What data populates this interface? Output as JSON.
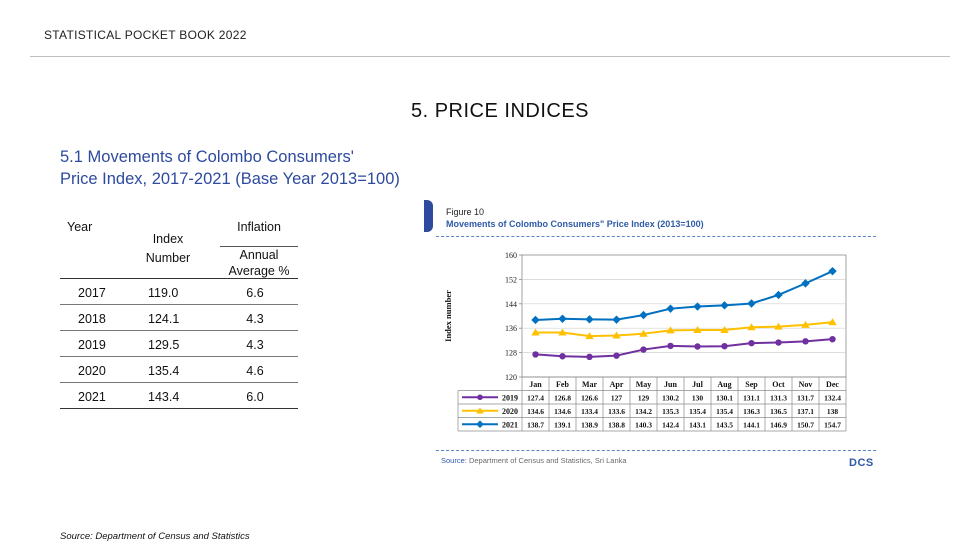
{
  "header": {
    "title": "STATISTICAL POCKET BOOK 2022"
  },
  "chapter": {
    "title": "5.  PRICE INDICES"
  },
  "section": {
    "line1": "5.1  Movements of Colombo Consumers'",
    "line2": "Price Index, 2017-2021 (Base Year 2013=100)"
  },
  "table": {
    "col_year": "Year",
    "col_index": "Index Number",
    "col_inflation": "Inflation",
    "col_inflation_sub": "Annual Average %",
    "rows": [
      {
        "year": "2017",
        "index": "119.0",
        "inflation": "6.6"
      },
      {
        "year": "2018",
        "index": "124.1",
        "inflation": "4.3"
      },
      {
        "year": "2019",
        "index": "129.5",
        "inflation": "4.3"
      },
      {
        "year": "2020",
        "index": "135.4",
        "inflation": "4.6"
      },
      {
        "year": "2021",
        "index": "143.4",
        "inflation": "6.0"
      }
    ]
  },
  "source": "Source: Department of Census and Statistics",
  "figure": {
    "label": "Figure 10",
    "title": "Movements of Colombo Consumers\" Price Index (2013=100)",
    "source_key": "Source:",
    "source_text": "Department of Census and Statistics, Sri Lanka",
    "logo": "DCS",
    "colors": {
      "2019": "#7030a0",
      "2020": "#ffc000",
      "2021": "#0070c0",
      "title": "#2e5aa8",
      "tab": "#2e4a9e"
    }
  },
  "chart_data": {
    "type": "line",
    "ylabel": "Index number",
    "ylim": [
      120,
      160
    ],
    "yticks": [
      120,
      128,
      136,
      144,
      152,
      160
    ],
    "categories": [
      "Jan",
      "Feb",
      "Mar",
      "Apr",
      "May",
      "Jun",
      "Jul",
      "Aug",
      "Sep",
      "Oct",
      "Nov",
      "Dec"
    ],
    "grid": true,
    "legend": "data table below plot",
    "series": [
      {
        "name": "2019",
        "values": [
          127.4,
          126.8,
          126.6,
          127,
          129,
          130.2,
          130,
          130.1,
          131.1,
          131.3,
          131.7,
          132.4
        ],
        "labels": [
          "127.4",
          "126.8",
          "126.6",
          "127",
          "129",
          "130.2",
          "130",
          "130.1",
          "131.1",
          "131.3",
          "131.7",
          "132.4"
        ],
        "color": "#7030a0",
        "marker": "circle"
      },
      {
        "name": "2020",
        "values": [
          134.6,
          134.6,
          133.4,
          133.6,
          134.2,
          135.3,
          135.4,
          135.4,
          136.3,
          136.5,
          137.1,
          138
        ],
        "labels": [
          "134.6",
          "134.6",
          "133.4",
          "133.6",
          "134.2",
          "135.3",
          "135.4",
          "135.4",
          "136.3",
          "136.5",
          "137.1",
          "138"
        ],
        "color": "#ffc000",
        "marker": "triangle"
      },
      {
        "name": "2021",
        "values": [
          138.7,
          139.1,
          138.9,
          138.8,
          140.3,
          142.4,
          143.1,
          143.5,
          144.1,
          146.9,
          150.7,
          154.7
        ],
        "labels": [
          "138.7",
          "139.1",
          "138.9",
          "138.8",
          "140.3",
          "142.4",
          "143.1",
          "143.5",
          "144.1",
          "146.9",
          "150.7",
          "154.7"
        ],
        "color": "#0070c0",
        "marker": "diamond"
      }
    ]
  }
}
